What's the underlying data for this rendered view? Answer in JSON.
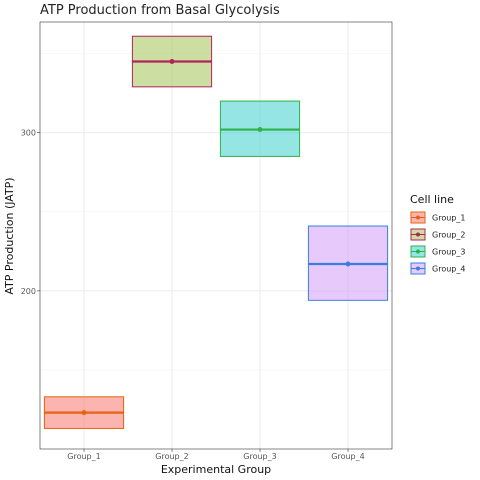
{
  "chart_data": {
    "type": "crossbar",
    "title": "ATP Production from Basal Glycolysis",
    "xlabel": "Experimental Group",
    "ylabel": "ATP Production (JATP)",
    "categories": [
      "Group_1",
      "Group_2",
      "Group_3",
      "Group_4"
    ],
    "yticks": [
      200,
      300
    ],
    "ylim": [
      100,
      370
    ],
    "grid": true,
    "legend": {
      "title": "Cell line",
      "placement": "right"
    },
    "series": [
      {
        "name": "Group_1",
        "category": "Group_1",
        "mean": 123,
        "lower": 113,
        "upper": 133,
        "fill": "#F8766D",
        "stroke": "#E8620C"
      },
      {
        "name": "Group_2",
        "category": "Group_2",
        "mean": 345,
        "lower": 329,
        "upper": 361,
        "fill": "#A3C253",
        "stroke": "#B0245A"
      },
      {
        "name": "Group_3",
        "category": "Group_3",
        "mean": 302,
        "lower": 285,
        "upper": 320,
        "fill": "#3ECFCF",
        "stroke": "#2DB34A"
      },
      {
        "name": "Group_4",
        "category": "Group_4",
        "mean": 217,
        "lower": 194,
        "upper": 241,
        "fill": "#D49CFA",
        "stroke": "#3A7FE0"
      }
    ]
  }
}
